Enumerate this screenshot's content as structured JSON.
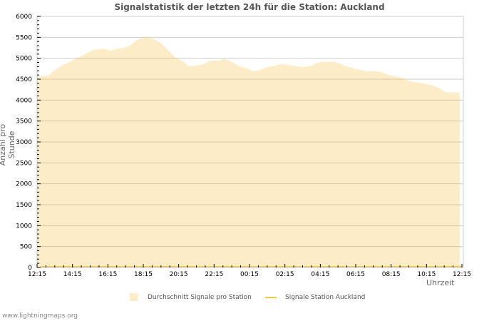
{
  "chart_data": {
    "type": "area",
    "title": "Signalstatistik der letzten 24h für die Station: Auckland",
    "xlabel": "Uhrzeit",
    "ylabel": "Anzahl pro Stunde",
    "ylim": [
      0,
      6000
    ],
    "yticks": [
      0,
      500,
      1000,
      1500,
      2000,
      2500,
      3000,
      3500,
      4000,
      4500,
      5000,
      5500,
      6000
    ],
    "xticks": [
      "12:15",
      "14:15",
      "16:15",
      "18:15",
      "20:15",
      "22:15",
      "00:15",
      "02:15",
      "04:15",
      "06:15",
      "08:15",
      "10:15",
      "12:15"
    ],
    "grid": true,
    "legend_position": "bottom",
    "series": [
      {
        "name": "Durchschnitt Signale pro Station",
        "kind": "area",
        "color": "#fdecc8",
        "x_hours": [
          0,
          0.32,
          0.6,
          0.93,
          1.33,
          1.73,
          2.14,
          2.54,
          2.94,
          3.15,
          3.75,
          4.15,
          4.56,
          4.96,
          5.36,
          5.76,
          6.17,
          6.57,
          6.97,
          7.37,
          7.78,
          8.18,
          8.58,
          8.98,
          9.38,
          9.79,
          10.19,
          10.59,
          10.99,
          11.4,
          11.8,
          12.2,
          12.6,
          13.01,
          13.41,
          13.81,
          14.21,
          14.62,
          15.02,
          15.42,
          15.82,
          16.23,
          16.63,
          17.03,
          17.43,
          17.84,
          18.24,
          18.64,
          19.04,
          19.44,
          19.85,
          20.25,
          20.65,
          21.05,
          21.46,
          21.86,
          22.26,
          22.66,
          23.07,
          23.47,
          23.87
        ],
        "values": [
          4550,
          4570,
          4570,
          4690,
          4810,
          4890,
          4980,
          5060,
          5150,
          5200,
          5230,
          5180,
          5230,
          5250,
          5340,
          5460,
          5510,
          5460,
          5370,
          5200,
          5030,
          4940,
          4810,
          4820,
          4860,
          4940,
          4940,
          4980,
          4910,
          4810,
          4770,
          4690,
          4720,
          4790,
          4820,
          4860,
          4840,
          4810,
          4790,
          4810,
          4890,
          4920,
          4920,
          4890,
          4810,
          4770,
          4720,
          4690,
          4690,
          4670,
          4600,
          4570,
          4520,
          4450,
          4420,
          4400,
          4360,
          4300,
          4190,
          4180,
          4180
        ]
      },
      {
        "name": "Signale Station Auckland",
        "kind": "line",
        "color": "#f6c84a",
        "x_hours": [
          0.2,
          24
        ],
        "values": [
          5,
          5
        ]
      }
    ]
  },
  "header": {
    "title": "Signalstatistik der letzten 24h für die Station: Auckland"
  },
  "axes": {
    "ylabel": "Anzahl pro Stunde",
    "xlabel": "Uhrzeit"
  },
  "legend": {
    "items": [
      {
        "label": "Durchschnitt Signale pro Station",
        "color": "#fdecc8"
      },
      {
        "label": "Signale Station Auckland",
        "color": "#f6c84a"
      }
    ]
  },
  "footer": {
    "text": "www.lightningmaps.org"
  }
}
